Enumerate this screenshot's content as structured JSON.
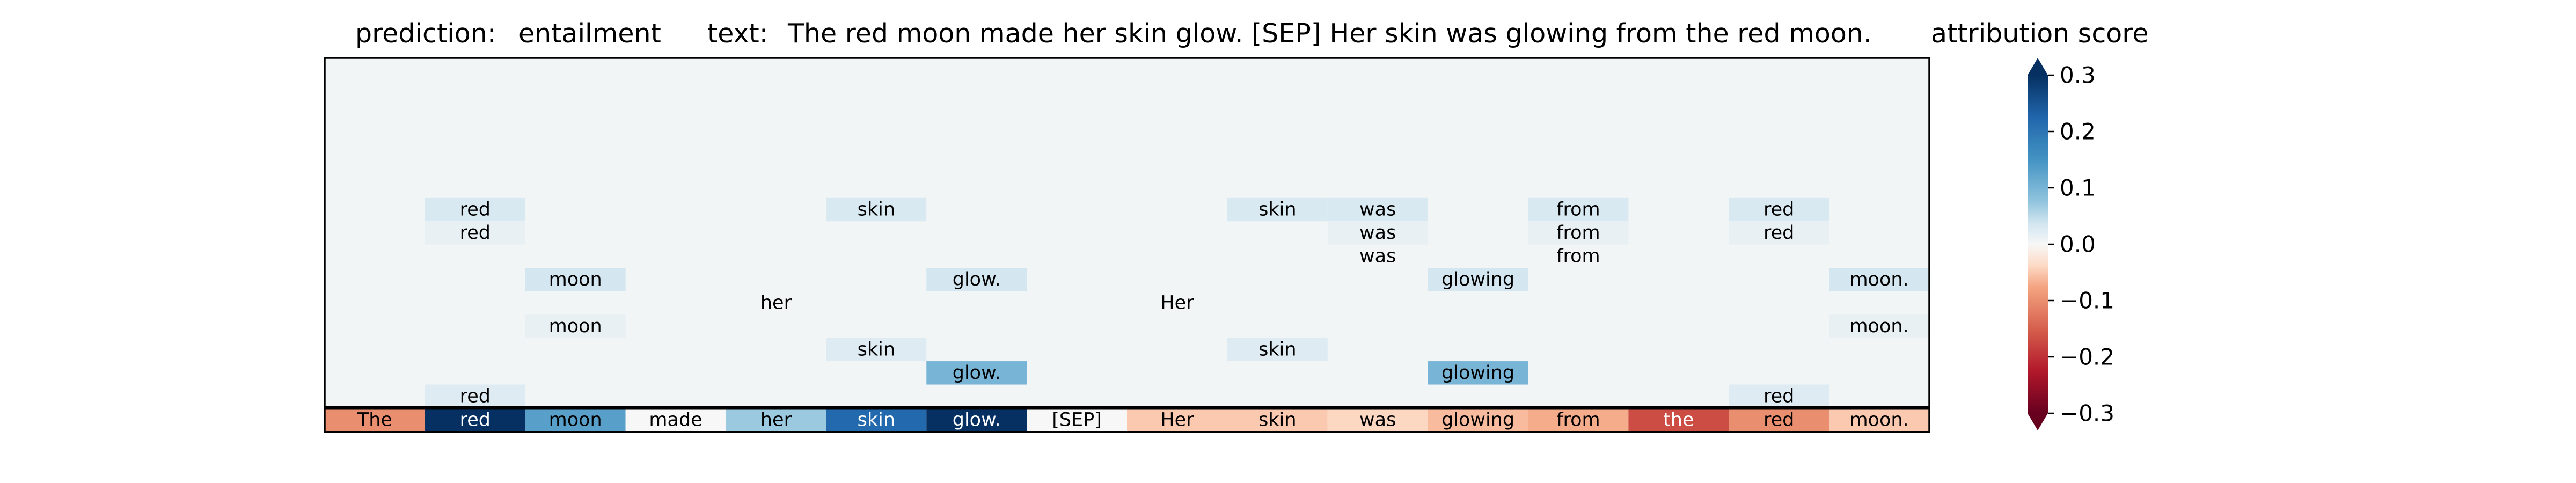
{
  "header": {
    "prediction_label": "prediction:",
    "prediction_value": "entailment",
    "text_label": "text:",
    "text_value": "The red moon made her skin glow. [SEP] Her skin was glowing from the red moon.",
    "colorbar_title": "attribution score"
  },
  "chart_data": {
    "type": "heatmap",
    "colormap": "RdBu",
    "value_range": [
      -0.3,
      0.3
    ],
    "colorbar_ticks": [
      "0.3",
      "0.2",
      "0.1",
      "0.0",
      "−0.1",
      "−0.2",
      "−0.3"
    ],
    "colorbar_tick_values": [
      0.3,
      0.2,
      0.1,
      0.0,
      -0.1,
      -0.2,
      -0.3
    ],
    "tokens": [
      "The",
      "red",
      "moon",
      "made",
      "her",
      "skin",
      "glow.",
      "[SEP]",
      "Her",
      "skin",
      "was",
      "glowing",
      "from",
      "the",
      "red",
      "moon."
    ],
    "token_attributions": [
      -0.1,
      0.3,
      0.13,
      0.0,
      0.07,
      0.22,
      0.3,
      0.0,
      -0.05,
      -0.05,
      -0.04,
      -0.06,
      -0.07,
      -0.17,
      -0.1,
      -0.05
    ],
    "background_value": 0.005,
    "layer_rows": 15,
    "layer_cells": [
      {
        "row": 6,
        "col": 1,
        "token": "red",
        "value": 0.03
      },
      {
        "row": 6,
        "col": 5,
        "token": "skin",
        "value": 0.03
      },
      {
        "row": 6,
        "col": 9,
        "token": "skin",
        "value": 0.03
      },
      {
        "row": 6,
        "col": 10,
        "token": "was",
        "value": 0.03
      },
      {
        "row": 6,
        "col": 12,
        "token": "from",
        "value": 0.03
      },
      {
        "row": 6,
        "col": 14,
        "token": "red",
        "value": 0.03
      },
      {
        "row": 7,
        "col": 1,
        "token": "red",
        "value": 0.015
      },
      {
        "row": 7,
        "col": 10,
        "token": "was",
        "value": 0.015
      },
      {
        "row": 7,
        "col": 12,
        "token": "from",
        "value": 0.015
      },
      {
        "row": 7,
        "col": 14,
        "token": "red",
        "value": 0.015
      },
      {
        "row": 8,
        "col": 10,
        "token": "was",
        "value": 0.005
      },
      {
        "row": 8,
        "col": 12,
        "token": "from",
        "value": 0.005
      },
      {
        "row": 9,
        "col": 2,
        "token": "moon",
        "value": 0.035
      },
      {
        "row": 9,
        "col": 6,
        "token": "glow.",
        "value": 0.035
      },
      {
        "row": 9,
        "col": 11,
        "token": "glowing",
        "value": 0.035
      },
      {
        "row": 9,
        "col": 15,
        "token": "moon.",
        "value": 0.035
      },
      {
        "row": 10,
        "col": 4,
        "token": "her",
        "value": 0.005
      },
      {
        "row": 10,
        "col": 8,
        "token": "Her",
        "value": 0.005
      },
      {
        "row": 11,
        "col": 2,
        "token": "moon",
        "value": 0.015
      },
      {
        "row": 11,
        "col": 15,
        "token": "moon.",
        "value": 0.015
      },
      {
        "row": 12,
        "col": 5,
        "token": "skin",
        "value": 0.025
      },
      {
        "row": 12,
        "col": 9,
        "token": "skin",
        "value": 0.025
      },
      {
        "row": 13,
        "col": 6,
        "token": "glow.",
        "value": 0.1
      },
      {
        "row": 13,
        "col": 11,
        "token": "glowing",
        "value": 0.1
      },
      {
        "row": 14,
        "col": 1,
        "token": "red",
        "value": 0.025
      },
      {
        "row": 14,
        "col": 14,
        "token": "red",
        "value": 0.025
      }
    ]
  }
}
